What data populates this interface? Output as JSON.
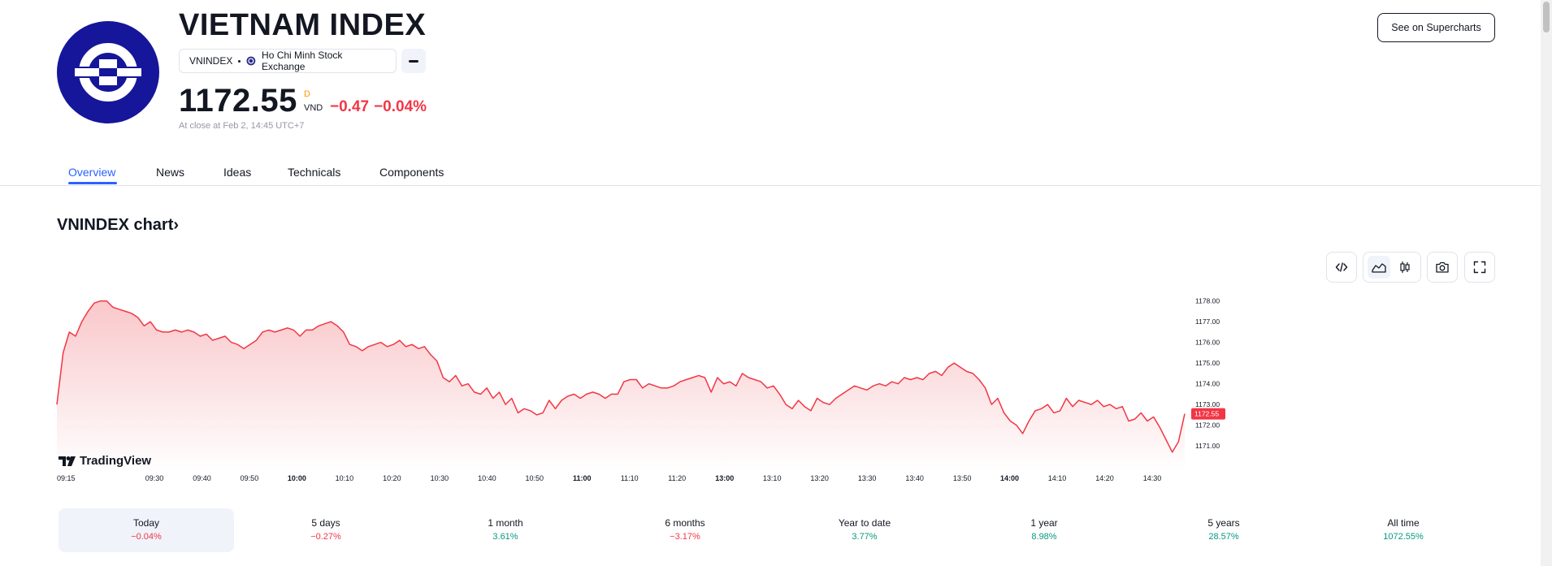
{
  "header": {
    "title": "VIETNAM INDEX",
    "symbol": "VNINDEX",
    "exchange": "Ho Chi Minh Stock Exchange",
    "price": "1172.55",
    "price_flag": "D",
    "currency": "VND",
    "change_abs": "−0.47",
    "change_pct": "−0.04%",
    "close_note": "At close at Feb 2, 14:45 UTC+7",
    "supercharts_label": "See on Supercharts"
  },
  "tabs": [
    {
      "label": "Overview",
      "active": true
    },
    {
      "label": "News"
    },
    {
      "label": "Ideas"
    },
    {
      "label": "Technicals"
    },
    {
      "label": "Components"
    }
  ],
  "chart_section": {
    "heading": "VNINDEX chart",
    "heading_chevron": "›",
    "brand": "TradingView",
    "toolbar": [
      "embed-icon",
      "area-chart-icon",
      "candles-icon",
      "camera-icon",
      "fullscreen-icon"
    ]
  },
  "chart_data": {
    "type": "area",
    "colors": {
      "line": "#f23645",
      "fill_top": "#f9c5c8",
      "fill_bottom": "#ffffff",
      "last_label_bg": "#f23645"
    },
    "x_ticks": [
      "09:15",
      "09:30",
      "09:40",
      "09:50",
      "10:00",
      "10:10",
      "10:20",
      "10:30",
      "10:40",
      "10:50",
      "11:00",
      "11:10",
      "11:20",
      "13:00",
      "13:10",
      "13:20",
      "13:30",
      "13:40",
      "13:50",
      "14:00",
      "14:10",
      "14:20",
      "14:30"
    ],
    "bold_ticks": [
      "10:00",
      "11:00",
      "13:00",
      "14:00"
    ],
    "y_ticks": [
      "1178.00",
      "1177.00",
      "1176.00",
      "1175.00",
      "1174.00",
      "1173.00",
      "1172.00",
      "1171.00"
    ],
    "ylim": [
      1170.3,
      1178.3
    ],
    "last_value": "1172.55",
    "values": [
      1173.0,
      1175.5,
      1176.5,
      1176.3,
      1177.0,
      1177.5,
      1177.9,
      1178.0,
      1178.0,
      1177.7,
      1177.6,
      1177.5,
      1177.4,
      1177.2,
      1176.8,
      1177.0,
      1176.6,
      1176.5,
      1176.5,
      1176.6,
      1176.5,
      1176.6,
      1176.5,
      1176.3,
      1176.4,
      1176.1,
      1176.2,
      1176.3,
      1176.0,
      1175.9,
      1175.7,
      1175.9,
      1176.1,
      1176.5,
      1176.6,
      1176.5,
      1176.6,
      1176.7,
      1176.6,
      1176.3,
      1176.6,
      1176.6,
      1176.8,
      1176.9,
      1177.0,
      1176.8,
      1176.5,
      1175.9,
      1175.8,
      1175.6,
      1175.8,
      1175.9,
      1176.0,
      1175.8,
      1175.9,
      1176.1,
      1175.8,
      1175.9,
      1175.7,
      1175.8,
      1175.4,
      1175.1,
      1174.3,
      1174.1,
      1174.4,
      1173.9,
      1174.0,
      1173.6,
      1173.5,
      1173.8,
      1173.3,
      1173.6,
      1173.0,
      1173.3,
      1172.6,
      1172.8,
      1172.7,
      1172.5,
      1172.6,
      1173.2,
      1172.8,
      1173.2,
      1173.4,
      1173.5,
      1173.3,
      1173.5,
      1173.6,
      1173.5,
      1173.3,
      1173.5,
      1173.5,
      1174.1,
      1174.2,
      1174.2,
      1173.8,
      1174.0,
      1173.9,
      1173.8,
      1173.8,
      1173.9,
      1174.1,
      1174.2,
      1174.3,
      1174.4,
      1174.3,
      1173.6,
      1174.3,
      1174.0,
      1174.1,
      1173.9,
      1174.5,
      1174.3,
      1174.2,
      1174.1,
      1173.8,
      1173.9,
      1173.5,
      1173.0,
      1172.8,
      1173.2,
      1172.9,
      1172.7,
      1173.3,
      1173.1,
      1173.0,
      1173.3,
      1173.5,
      1173.7,
      1173.9,
      1173.8,
      1173.7,
      1173.9,
      1174.0,
      1173.9,
      1174.1,
      1174.0,
      1174.3,
      1174.2,
      1174.3,
      1174.2,
      1174.5,
      1174.6,
      1174.4,
      1174.8,
      1175.0,
      1174.8,
      1174.6,
      1174.5,
      1174.2,
      1173.8,
      1173.0,
      1173.3,
      1172.6,
      1172.2,
      1172.0,
      1171.6,
      1172.2,
      1172.7,
      1172.8,
      1173.0,
      1172.6,
      1172.7,
      1173.3,
      1172.9,
      1173.2,
      1173.1,
      1173.0,
      1173.2,
      1172.9,
      1173.0,
      1172.8,
      1172.9,
      1172.2,
      1172.3,
      1172.6,
      1172.2,
      1172.4,
      1171.9,
      1171.3,
      1170.7,
      1171.2,
      1172.55
    ]
  },
  "periods": [
    {
      "label": "Today",
      "value": "−0.04%",
      "dir": "neg",
      "active": true
    },
    {
      "label": "5 days",
      "value": "−0.27%",
      "dir": "neg"
    },
    {
      "label": "1 month",
      "value": "3.61%",
      "dir": "pos"
    },
    {
      "label": "6 months",
      "value": "−3.17%",
      "dir": "neg"
    },
    {
      "label": "Year to date",
      "value": "3.77%",
      "dir": "pos"
    },
    {
      "label": "1 year",
      "value": "8.98%",
      "dir": "pos"
    },
    {
      "label": "5 years",
      "value": "28.57%",
      "dir": "pos"
    },
    {
      "label": "All time",
      "value": "1072.55%",
      "dir": "pos"
    }
  ]
}
